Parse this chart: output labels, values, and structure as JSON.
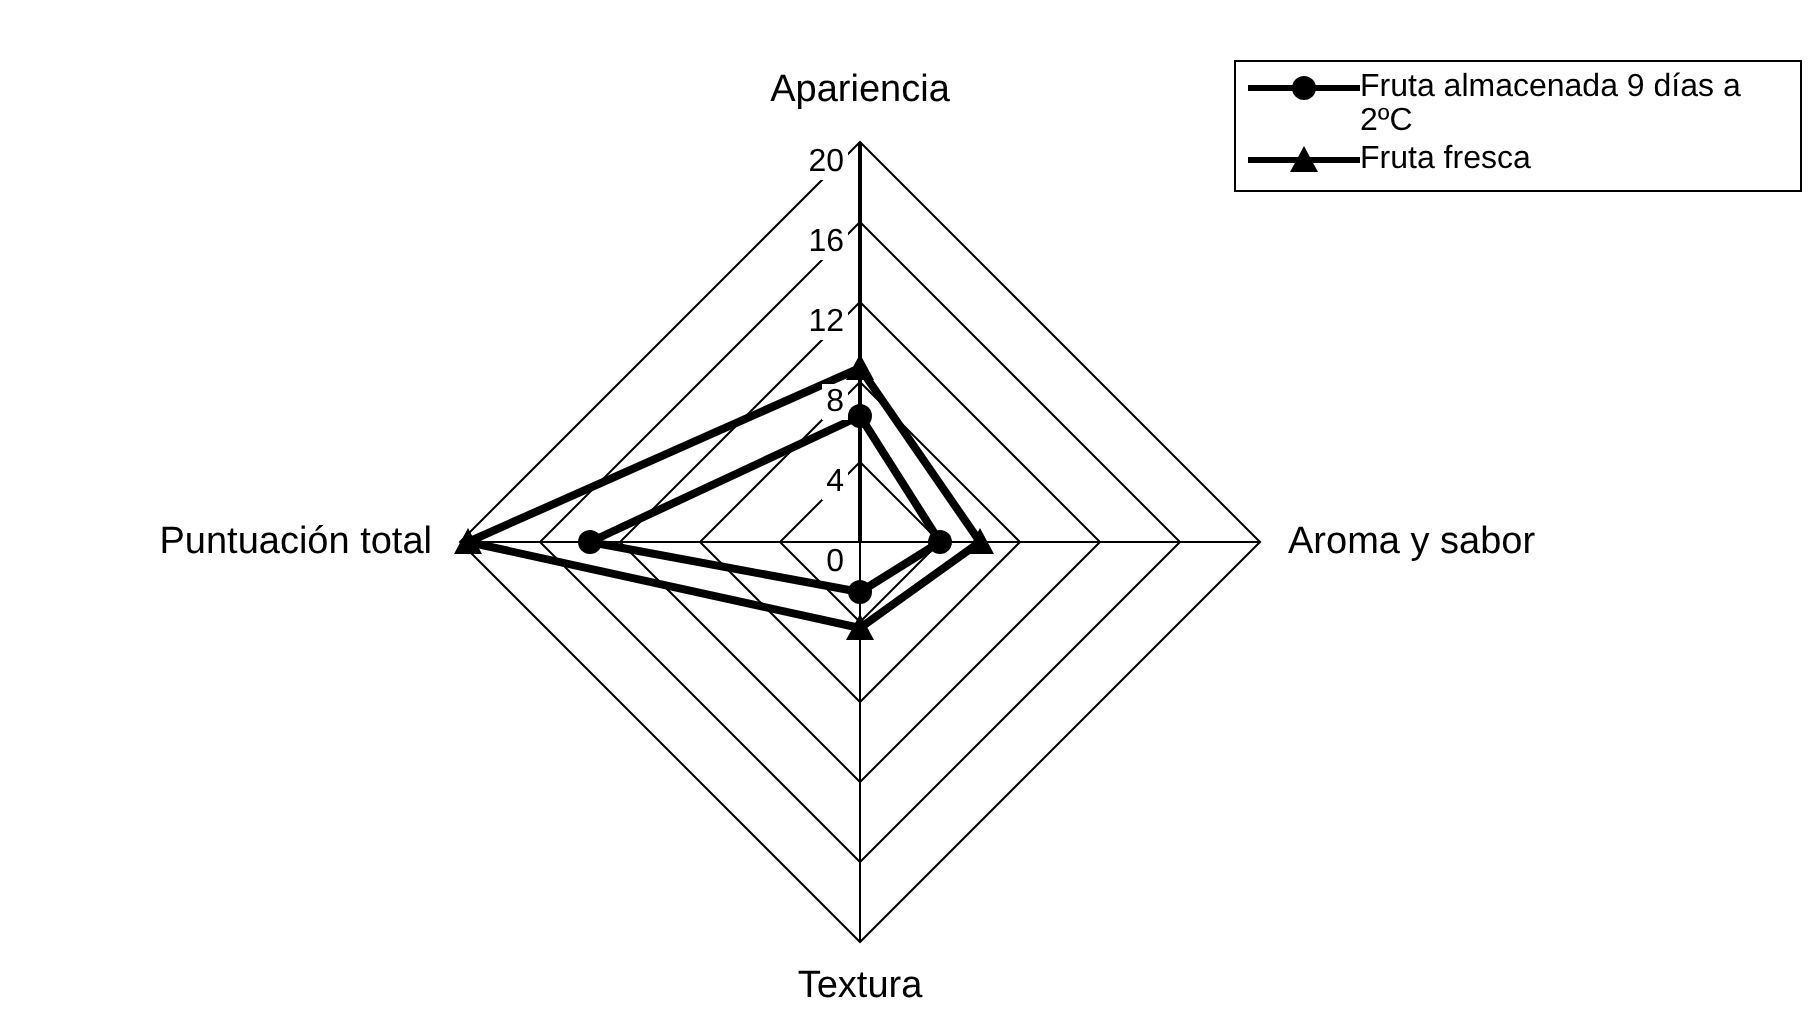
{
  "chart_data": {
    "type": "radar",
    "categories": [
      "Apariencia",
      "Aroma y sabor",
      "Textura",
      "Puntuación total"
    ],
    "series": [
      {
        "name": "Fruta almacenada 9 días a 2ºC",
        "color": "#000000",
        "marker": "circle",
        "values": [
          6.3,
          4.0,
          2.5,
          13.5
        ]
      },
      {
        "name": "Fruta fresca",
        "color": "#000000",
        "marker": "triangle",
        "values": [
          8.7,
          6.0,
          4.3,
          19.6
        ]
      }
    ],
    "ylim": [
      0,
      20
    ],
    "yticks": [
      0,
      4,
      8,
      12,
      16,
      20
    ],
    "grid": true,
    "legend": "top right",
    "line_style": "solid"
  }
}
